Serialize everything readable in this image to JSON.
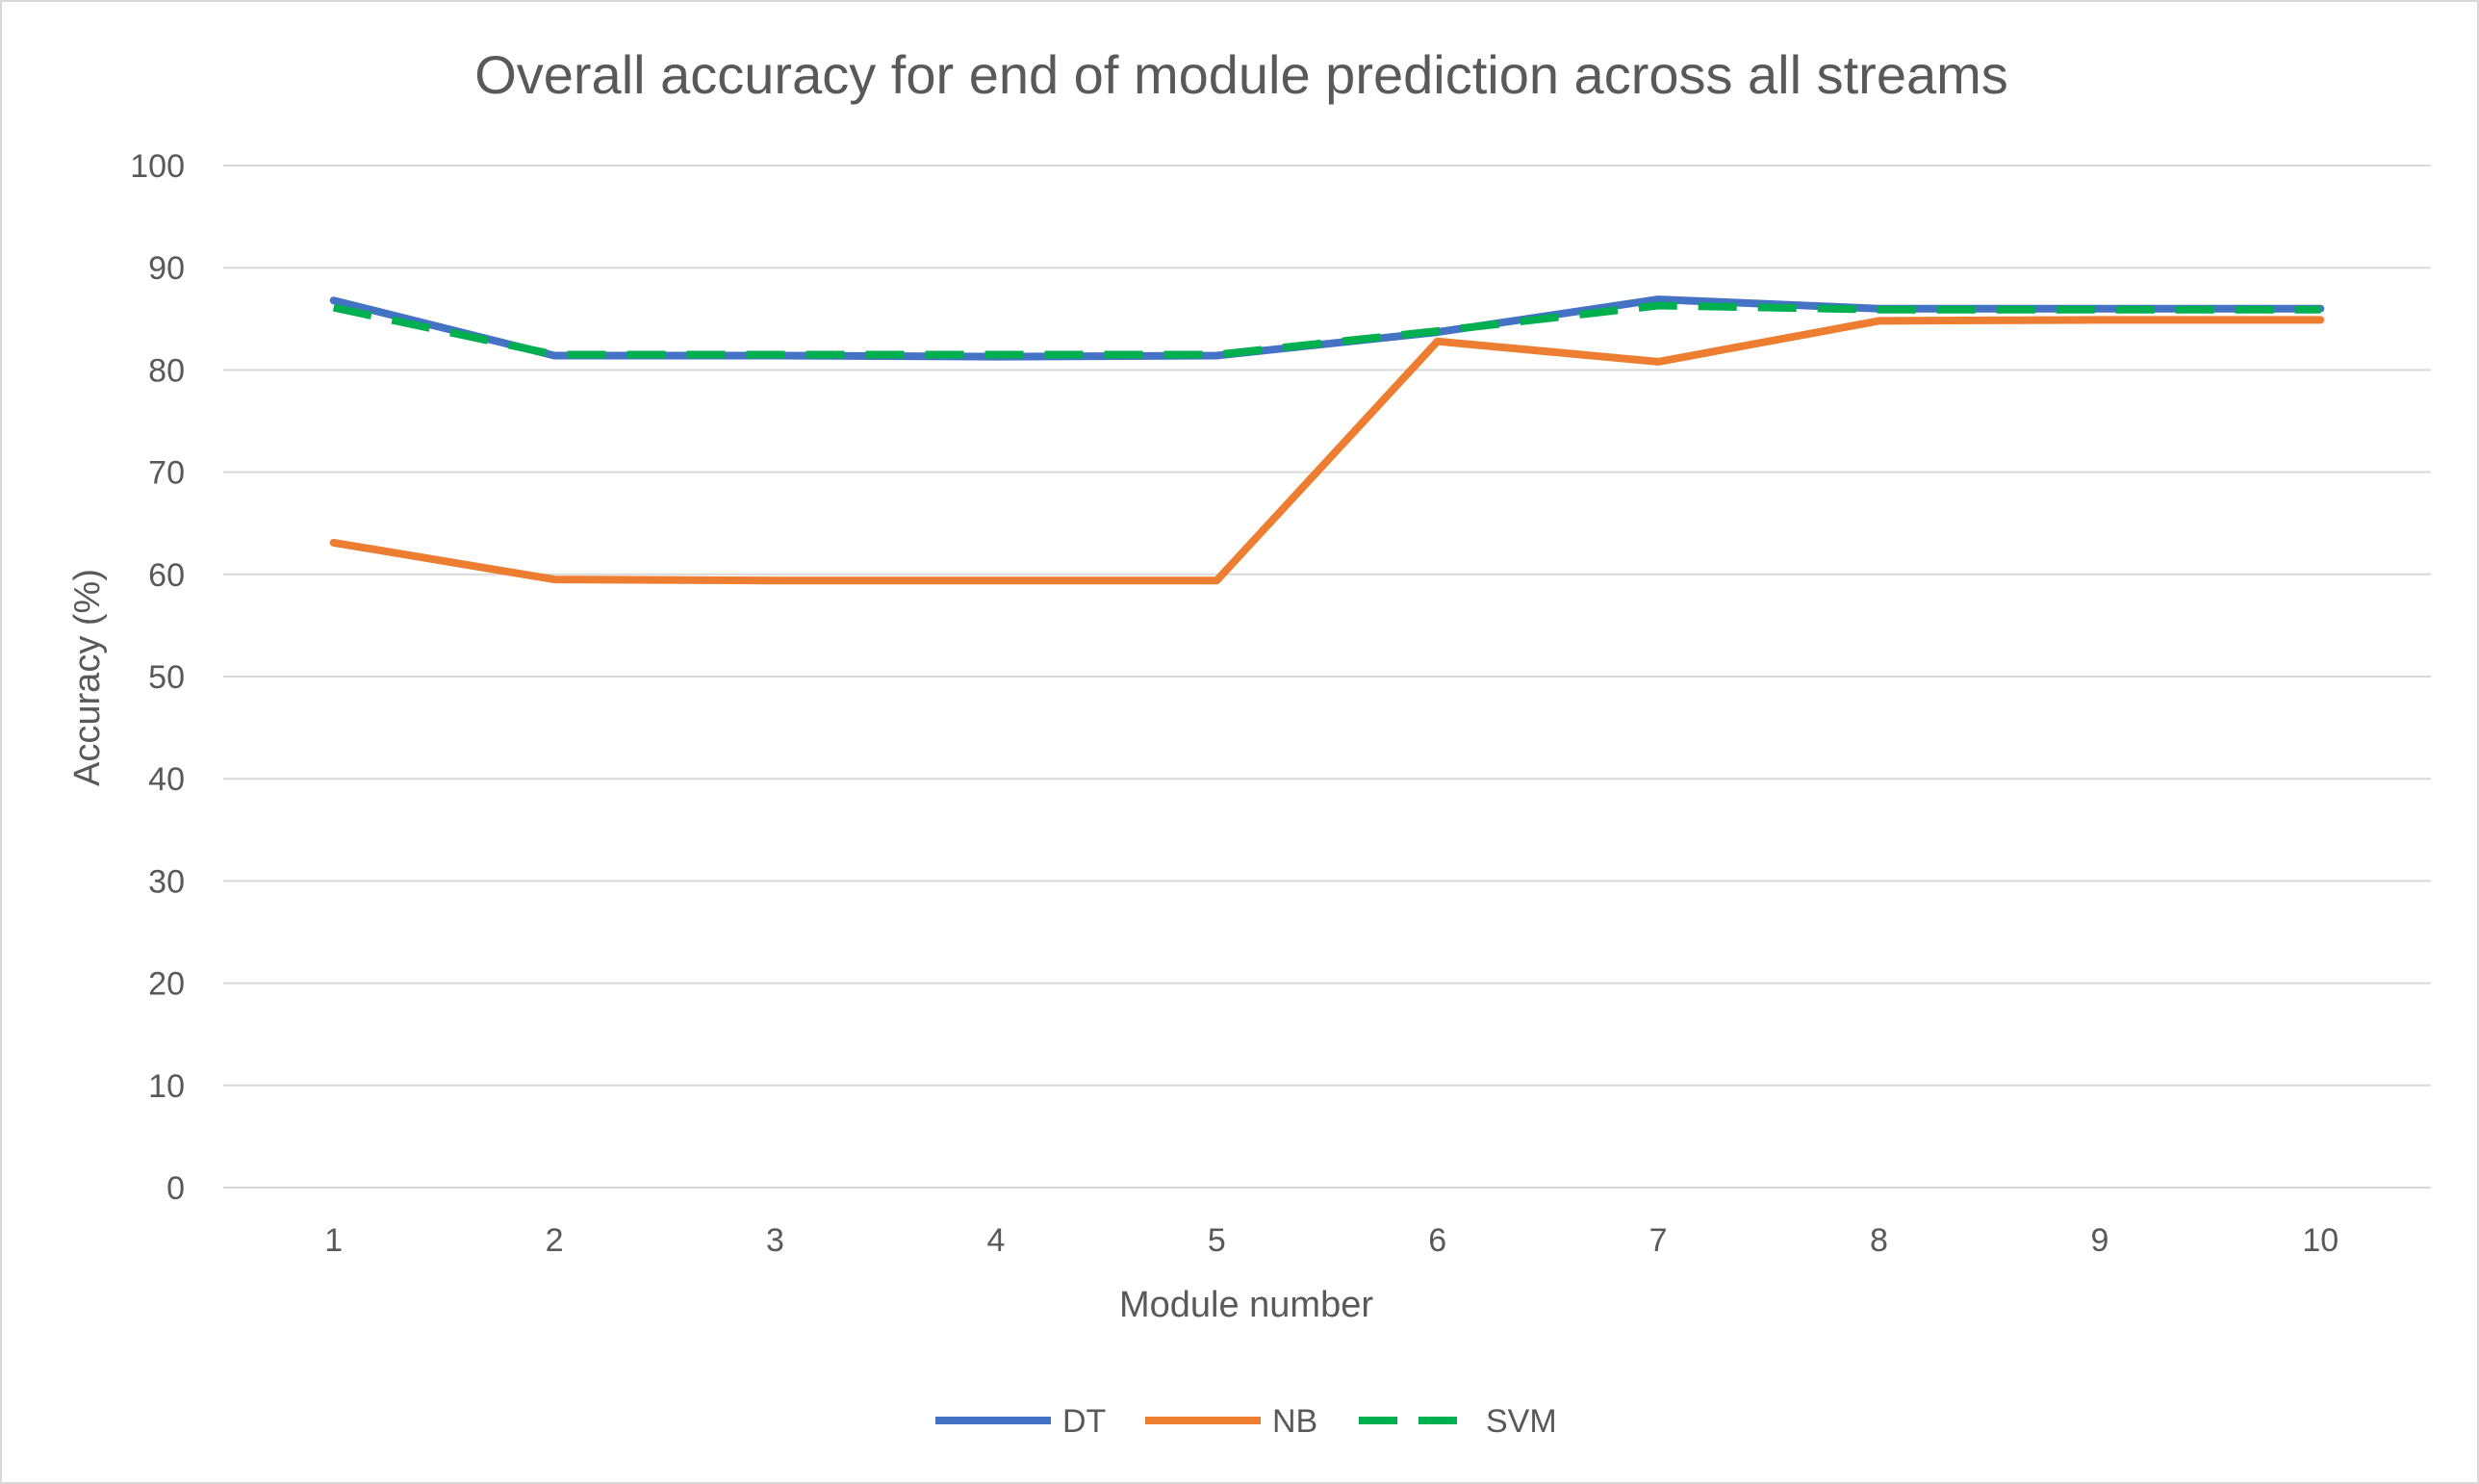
{
  "chart_data": {
    "type": "line",
    "title": "Overall accuracy for end of module prediction across all streams",
    "xlabel": "Module number",
    "ylabel": "Accuracy (%)",
    "categories": [
      "1",
      "2",
      "3",
      "4",
      "5",
      "6",
      "7",
      "8",
      "9",
      "10"
    ],
    "yticks": [
      "0",
      "10",
      "20",
      "30",
      "40",
      "50",
      "60",
      "70",
      "80",
      "90",
      "100"
    ],
    "ylim": [
      0,
      100
    ],
    "grid": "horizontal",
    "legend_position": "bottom",
    "series": [
      {
        "name": "DT",
        "color": "#4472c4",
        "dash": "solid",
        "values": [
          86.8,
          81.4,
          81.4,
          81.3,
          81.4,
          83.7,
          86.9,
          86.0,
          86.0,
          86.0
        ]
      },
      {
        "name": "NB",
        "color": "#ed7d31",
        "dash": "solid",
        "values": [
          63.1,
          59.5,
          59.4,
          59.4,
          59.4,
          82.8,
          80.8,
          84.8,
          84.9,
          84.9
        ]
      },
      {
        "name": "SVM",
        "color": "#00b050",
        "dash": "dashed",
        "values": [
          86.1,
          81.5,
          81.5,
          81.5,
          81.5,
          83.8,
          86.3,
          85.9,
          85.9,
          85.9
        ]
      }
    ]
  }
}
